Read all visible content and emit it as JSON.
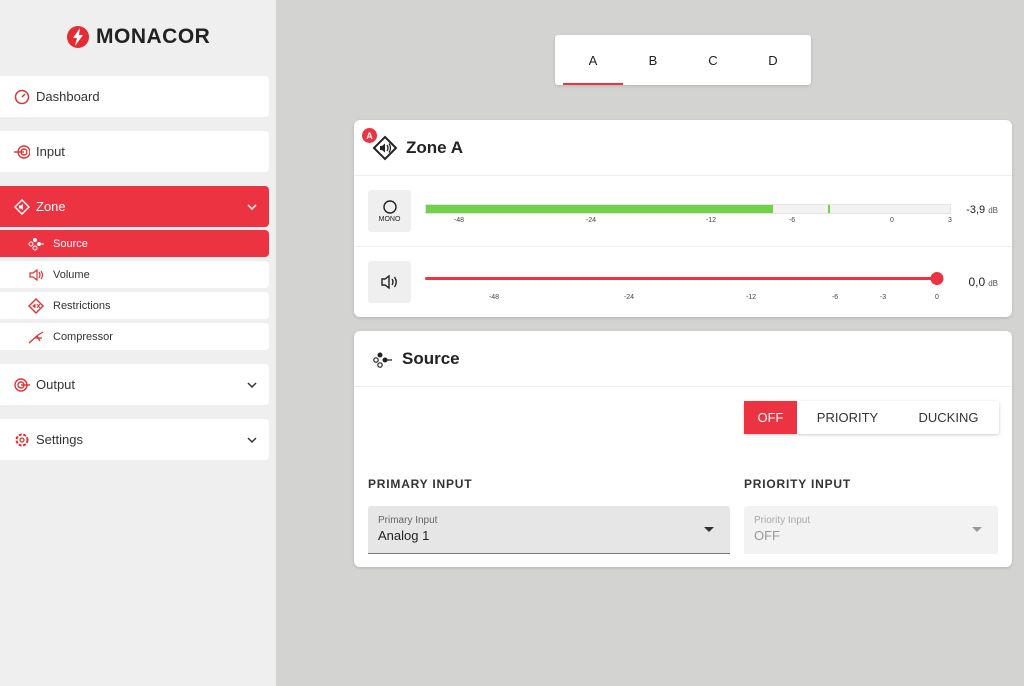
{
  "brand": {
    "name": "MONACOR",
    "accent": "#ec3342",
    "meter_green": "#6fd34a"
  },
  "sidebar": {
    "items": [
      {
        "label": "Dashboard",
        "icon": "gauge-icon"
      },
      {
        "label": "Input",
        "icon": "input-icon"
      },
      {
        "label": "Zone",
        "icon": "zone-speaker-icon",
        "expanded": true,
        "active": true,
        "children": [
          {
            "label": "Source",
            "icon": "source-icon",
            "active": true
          },
          {
            "label": "Volume",
            "icon": "volume-icon"
          },
          {
            "label": "Restrictions",
            "icon": "restrictions-icon"
          },
          {
            "label": "Compressor",
            "icon": "compressor-icon"
          }
        ]
      },
      {
        "label": "Output",
        "icon": "output-icon"
      },
      {
        "label": "Settings",
        "icon": "gear-icon"
      }
    ]
  },
  "zone_tabs": [
    {
      "label": "A",
      "active": true
    },
    {
      "label": "B"
    },
    {
      "label": "C"
    },
    {
      "label": "D"
    }
  ],
  "zone": {
    "badge": "A",
    "title": "Zone A",
    "meter": {
      "mode_label": "MONO",
      "ticks": [
        "-48",
        "-24",
        "-12",
        "-6",
        "0",
        "3"
      ],
      "level_db": -7.5,
      "peak_db": -3.9,
      "readout": "-3,9",
      "unit": "dB"
    },
    "volume": {
      "ticks": [
        "-48",
        "-24",
        "-12",
        "-6",
        "-3",
        "0"
      ],
      "value_db": 0,
      "readout": "0,0",
      "unit": "dB"
    }
  },
  "source": {
    "title": "Source",
    "modes": [
      {
        "label": "OFF",
        "active": true
      },
      {
        "label": "PRIORITY"
      },
      {
        "label": "DUCKING"
      }
    ],
    "primary": {
      "section": "PRIMARY INPUT",
      "field_label": "Primary Input",
      "value": "Analog 1"
    },
    "priority": {
      "section": "PRIORITY INPUT",
      "field_label": "Priority Input",
      "value": "OFF",
      "disabled": true
    }
  }
}
